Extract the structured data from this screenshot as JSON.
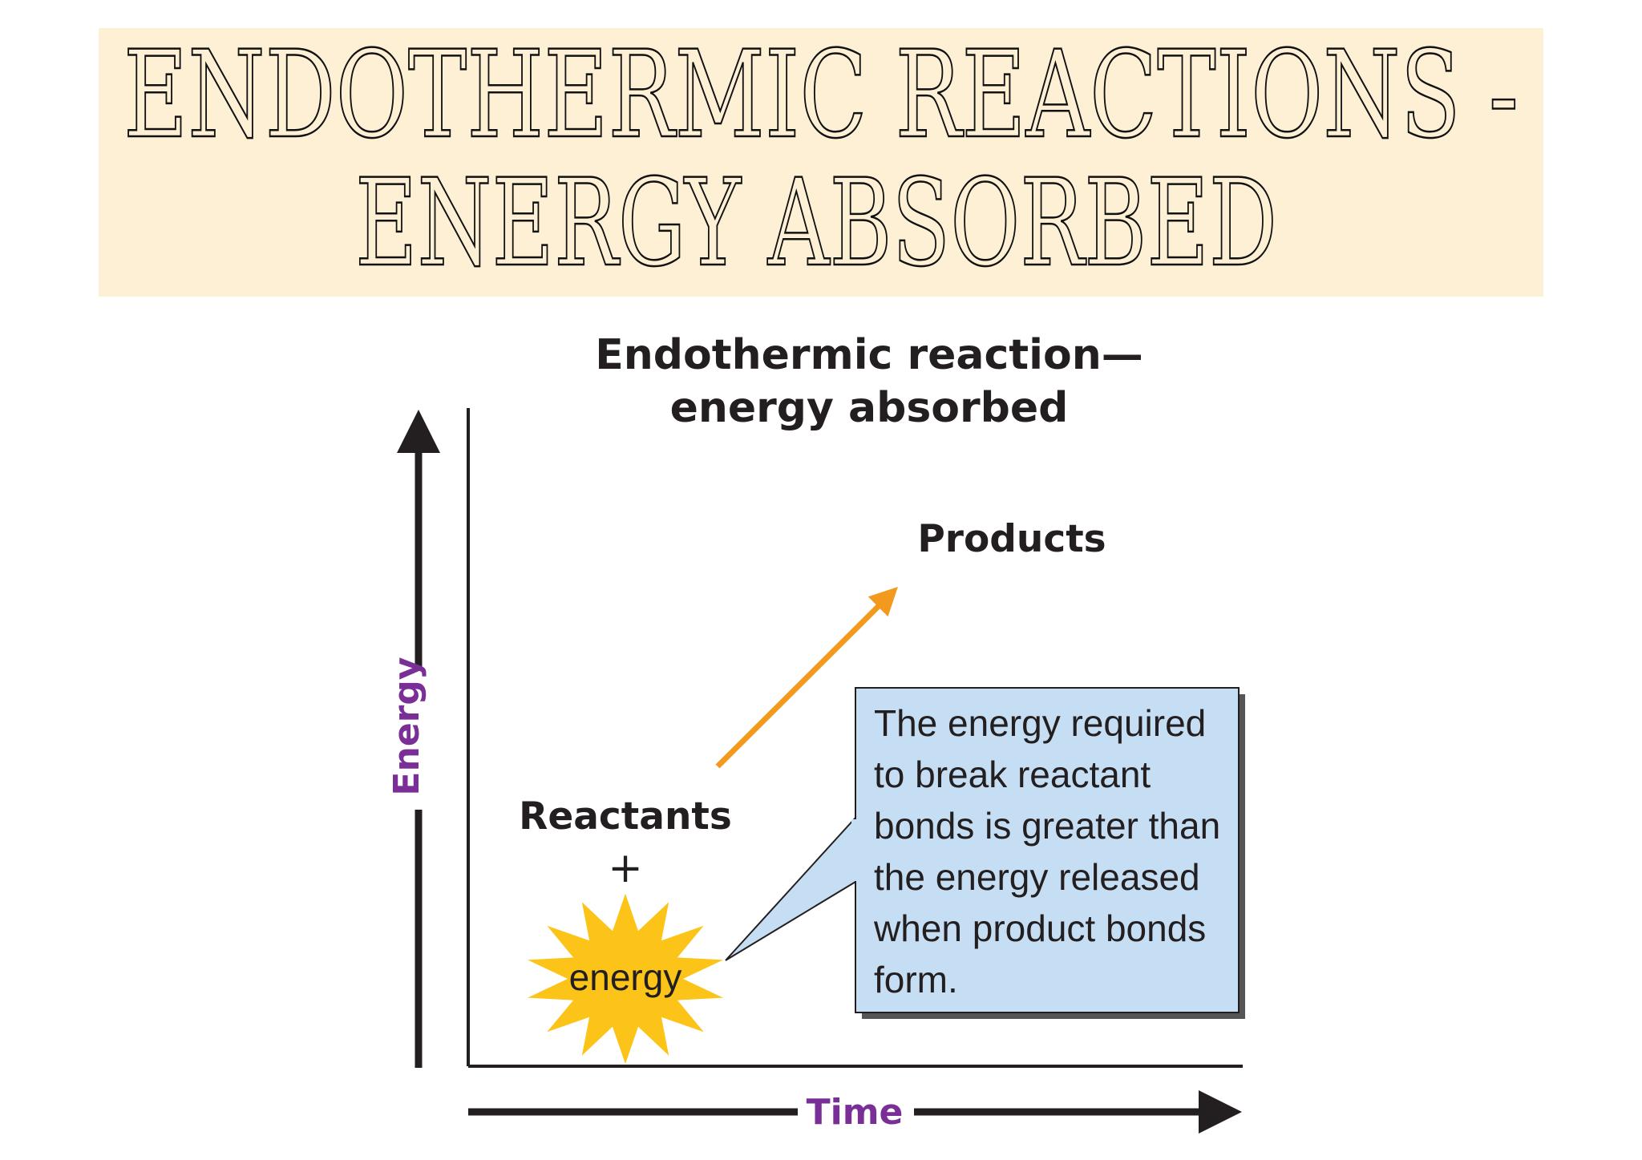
{
  "header": {
    "title_lines": [
      "ENDOTHERMIC REACTIONS -",
      "ENERGY ABSORBED"
    ]
  },
  "diagram": {
    "title_lines": [
      "Endothermic reaction—",
      "energy absorbed"
    ],
    "products": "Products",
    "reactants": "Reactants",
    "plus": "+",
    "energy_burst": "energy",
    "callout_lines": [
      "The energy required",
      "to break reactant",
      "bonds is greater than",
      "the energy released",
      "when product bonds",
      "form."
    ],
    "y_axis": "Energy",
    "x_axis": "Time"
  }
}
